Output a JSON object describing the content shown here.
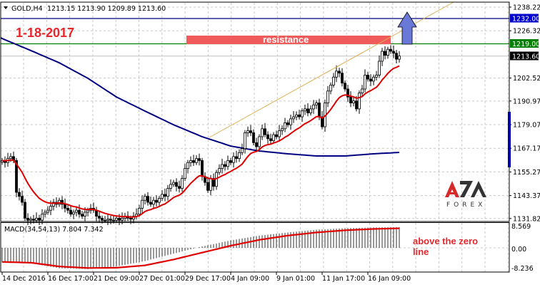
{
  "header": {
    "symbol": "GOLD,H4",
    "ohlc": "1213.15 1213.90 1209.89 1213.60"
  },
  "annotations": {
    "date": "1-18-2017",
    "resistance": "resistance",
    "macd_note_line1": "above the zero",
    "macd_note_line2": "line"
  },
  "logo": {
    "mark": "AZA",
    "word": "FOREX"
  },
  "colors": {
    "bull_candle": "#ffffff",
    "bear_candle": "#000000",
    "fast_ma": "#dd0000",
    "slow_ma": "#000080",
    "trendline": "#e0b050",
    "resistance_zone": "#f05a5a",
    "arrow": "#6a78d8",
    "level_1232": "#0000cc",
    "level_1219": "#008000",
    "annotation": "#e8262c"
  },
  "chart_data": [
    {
      "type": "candlestick",
      "title": "GOLD,H4",
      "timeframe": "H4",
      "ylim": [
        1130.3,
        1239.5
      ],
      "y_ticks": [
        "1238.22",
        "1226.32",
        "1202.52",
        "1190.97",
        "1179.07",
        "1167.17",
        "1155.27",
        "1143.37",
        "1131.82"
      ],
      "x_ticks": [
        "14 Dec 2016",
        "16 Dec 17:00",
        "21 Dec 09:00",
        "27 Dec 01:00",
        "29 Dec 17:00",
        "4 Jan 09:00",
        "9 Jan 01:00",
        "11 Jan 17:00",
        "16 Jan 09:00"
      ],
      "grid": true,
      "closes": [
        1161,
        1160,
        1162,
        1163,
        1161,
        1145,
        1143,
        1140,
        1132,
        1131,
        1131.5,
        1131,
        1132,
        1131,
        1134,
        1135,
        1136,
        1138,
        1140,
        1139,
        1141,
        1139,
        1137,
        1136,
        1134,
        1135,
        1136,
        1134,
        1133,
        1135,
        1136,
        1137,
        1136,
        1133,
        1132,
        1131,
        1131,
        1131.5,
        1131,
        1131,
        1132,
        1131,
        1132,
        1133,
        1132,
        1131.5,
        1133,
        1134,
        1137,
        1141,
        1143,
        1140,
        1139,
        1141,
        1140,
        1142,
        1144,
        1143,
        1147,
        1149,
        1150,
        1148,
        1147,
        1152,
        1157,
        1160,
        1161,
        1160,
        1162,
        1161,
        1153,
        1150,
        1146,
        1152,
        1148,
        1155,
        1157,
        1159,
        1158,
        1161,
        1160,
        1163,
        1162,
        1165,
        1167,
        1175,
        1176,
        1175,
        1170,
        1168,
        1173,
        1177,
        1174,
        1172,
        1171,
        1174,
        1173,
        1176,
        1177,
        1180,
        1179,
        1182,
        1183,
        1184,
        1183,
        1186,
        1187,
        1185,
        1187,
        1189,
        1190,
        1183,
        1178,
        1190,
        1196,
        1199,
        1203,
        1206,
        1205,
        1200,
        1197,
        1193,
        1190,
        1191,
        1187,
        1195,
        1197,
        1204,
        1202,
        1201,
        1203,
        1204,
        1211,
        1216,
        1214,
        1217,
        1216,
        1215,
        1212,
        1213.6
      ],
      "last_price": "1213.60",
      "slow_ma": [
        1222.4,
        1216.4,
        1210.2,
        1202.4,
        1193.0,
        1185.9,
        1179.0,
        1173.0,
        1168.3,
        1165.8,
        1164.4,
        1163.3,
        1163.3,
        1164.4,
        1165.1
      ],
      "horizontal_levels": [
        {
          "price": "1232.00",
          "color": "#0000cc"
        },
        {
          "price": "1219.00",
          "color": "#008000"
        }
      ],
      "resistance_zone": {
        "from": 1219.0,
        "to": 1223.5,
        "label": "resistance"
      },
      "trendline": {
        "from": 1171.5,
        "to": 1240.0
      }
    },
    {
      "type": "bar",
      "title": "MACD(34,54,13) 7.804 7.342",
      "indicator": "MACD(34,54,13)",
      "main_value": "7.804",
      "signal_value": "7.342",
      "y_ticks": [
        "8.569",
        "0.00",
        "-8.236"
      ],
      "ylim": [
        -8.236,
        8.569
      ],
      "main": [
        -5.5,
        -5.8,
        -7.7,
        -8.0,
        -7.0,
        -5.0,
        -2.2,
        0.5,
        2.8,
        4.6,
        5.8,
        6.8,
        7.4,
        7.7,
        7.804
      ],
      "signal": [
        -5.3,
        -5.6,
        -7.0,
        -7.6,
        -7.5,
        -6.6,
        -4.4,
        -1.8,
        0.8,
        3.0,
        4.6,
        5.8,
        6.6,
        7.1,
        7.342
      ]
    }
  ]
}
